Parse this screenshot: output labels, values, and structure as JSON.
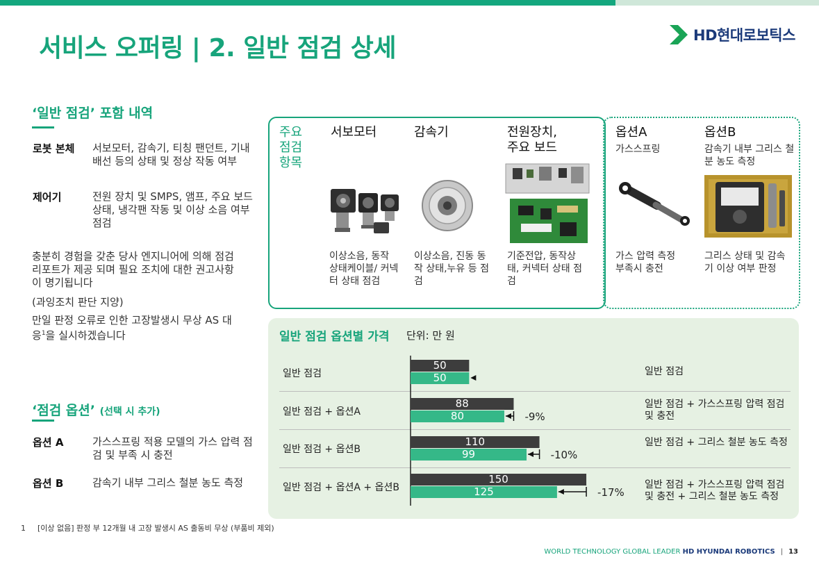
{
  "header": {
    "title": "서비스 오퍼링 | 2. 일반 점검 상세",
    "logo_text": "HD현대로보틱스"
  },
  "left": {
    "section1_title": "‘일반 점검’ 포함 내역",
    "robot_label": "로봇 본체",
    "robot_text": "서보모터, 감속기, 티칭 팬던트, 기내 배선 등의 상태 및 정상 작동 여부",
    "controller_label": "제어기",
    "controller_text": "전원 장치 및 SMPS, 앰프, 주요 보드 상태, 냉각팬 작동 및 이상 소음 여부 점검",
    "para1": "충분히 경험을 갖춘 당사 엔지니어에 의해 점검 리포트가 제공 되며 필요 조치에 대한 권고사항이 명기됩니다",
    "para2": "(과잉조치 판단 지양)",
    "para3_a": "만일 판정 오류로 인한 고장발생시 무상 AS 대응",
    "para3_sup": "1",
    "para3_b": "을 실시하겠습니다",
    "section2_title": "‘점검 옵션’",
    "section2_note": "(선택 시 추가)",
    "optA_label": "옵션 A",
    "optA_text": "가스스프링 적용 모델의 가스 압력 점검 및 부족 시 충전",
    "optB_label": "옵션 B",
    "optB_text": "감속기 내부 그리스 철분 농도 측정"
  },
  "items": {
    "label": "주요 점검 항목",
    "servo_head": "서보모터",
    "servo_desc": "이상소음, 동작 상태케이블/ 커넥터 상태 점검",
    "reducer_head": "감속기",
    "reducer_desc": "이상소음, 진동 동작 상태,누유 등 점검",
    "power_head": "전원장치, 주요 보드",
    "power_desc": "기준전압, 동작상태, 커넥터 상태 점검",
    "optA_head": "옵션A",
    "optA_sub": "가스스프링",
    "optA_desc": "가스 압력 측정 부족시 충전",
    "optB_head": "옵션B",
    "optB_sub": "감속기 내부 그리스 철분 농도 측정",
    "optB_desc": "그리스 상태 및 감속기 이상 여부 판정"
  },
  "chart_data": {
    "type": "bar",
    "title": "일반 점검 옵션별 가격",
    "unit": "단위: 만 원",
    "categories": [
      "일반 점검",
      "일반 점검 + 옵션A",
      "일반 점검 + 옵션B",
      "일반 점검 + 옵션A + 옵션B"
    ],
    "descriptions": [
      "일반 점검",
      "일반 점검 + 가스스프링 압력 점검 및 충전",
      "일반 점검 + 그리스 철분 농도 측정",
      "일반 점검 + 가스스프링 압력 점검 및 충전 + 그리스 철분 농도 측정"
    ],
    "series": [
      {
        "values": [
          50,
          88,
          110,
          150
        ],
        "color": "#3d3d3d"
      },
      {
        "values": [
          50,
          80,
          99,
          125
        ],
        "color": "#35b888"
      }
    ],
    "discounts": [
      "",
      "-9%",
      "-10%",
      "-17%"
    ],
    "xlim": [
      0,
      150
    ]
  },
  "footer": {
    "footnote_num": "1",
    "footnote_text": "[이상 없음] 판정 부 12개월 내 고장 발생시 AS 출동비 무상 (부품비 제외)",
    "tagline": "WORLD TECHNOLOGY GLOBAL LEADER",
    "brand": "HD HYUNDAI ROBOTICS",
    "page": "13"
  }
}
